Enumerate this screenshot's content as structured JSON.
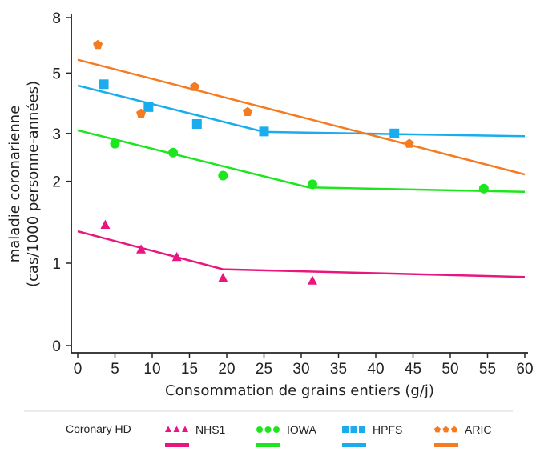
{
  "chart_data": {
    "type": "scatter",
    "ylabel_line1": "maladie coronarienne",
    "ylabel_line2": "(cas/1000 personne-années)",
    "xlabel": "Consommation de grains entiers (g/j)",
    "xlim": [
      0,
      60
    ],
    "x_ticks": [
      0,
      5,
      10,
      15,
      20,
      25,
      30,
      35,
      40,
      45,
      50,
      55,
      60
    ],
    "y_scale": "log",
    "y_ticks": [
      {
        "value": 0,
        "label": "0"
      },
      {
        "value": 1,
        "label": "1"
      },
      {
        "value": 2,
        "label": "2"
      },
      {
        "value": 3,
        "label": "3"
      },
      {
        "value": 5,
        "label": "5"
      },
      {
        "value": 8,
        "label": "8"
      }
    ],
    "grid": false,
    "legend_position": "bottom",
    "legend_title": "Coronary HD",
    "series": [
      {
        "name": "NHS1",
        "color": "#e8177f",
        "marker": "triangle",
        "points": [
          [
            3.7,
            1.38
          ],
          [
            8.5,
            1.12
          ],
          [
            13.3,
            1.05
          ],
          [
            19.5,
            0.88
          ],
          [
            31.5,
            0.86
          ]
        ],
        "fit": [
          [
            0,
            1.31
          ],
          [
            19.5,
            0.95
          ],
          [
            60,
            0.89
          ]
        ]
      },
      {
        "name": "IOWA",
        "color": "#1ee61e",
        "marker": "circle",
        "points": [
          [
            5,
            2.75
          ],
          [
            12.8,
            2.55
          ],
          [
            19.5,
            2.1
          ],
          [
            31.5,
            1.95
          ],
          [
            54.5,
            1.88
          ]
        ],
        "fit": [
          [
            0,
            3.08
          ],
          [
            31,
            1.9
          ],
          [
            60,
            1.83
          ]
        ]
      },
      {
        "name": "HPFS",
        "color": "#1aacec",
        "marker": "square",
        "points": [
          [
            3.5,
            4.55
          ],
          [
            9.5,
            3.75
          ],
          [
            16,
            3.25
          ],
          [
            25,
            3.05
          ],
          [
            42.5,
            3.0
          ]
        ],
        "fit": [
          [
            0,
            4.5
          ],
          [
            25,
            3.04
          ],
          [
            60,
            2.93
          ]
        ]
      },
      {
        "name": "ARIC",
        "color": "#f47b20",
        "marker": "pentagon",
        "points": [
          [
            2.7,
            6.35
          ],
          [
            8.5,
            3.55
          ],
          [
            15.7,
            4.45
          ],
          [
            22.8,
            3.6
          ],
          [
            44.5,
            2.75
          ]
        ],
        "fit": [
          [
            0,
            5.6
          ],
          [
            60,
            2.12
          ]
        ]
      }
    ]
  }
}
